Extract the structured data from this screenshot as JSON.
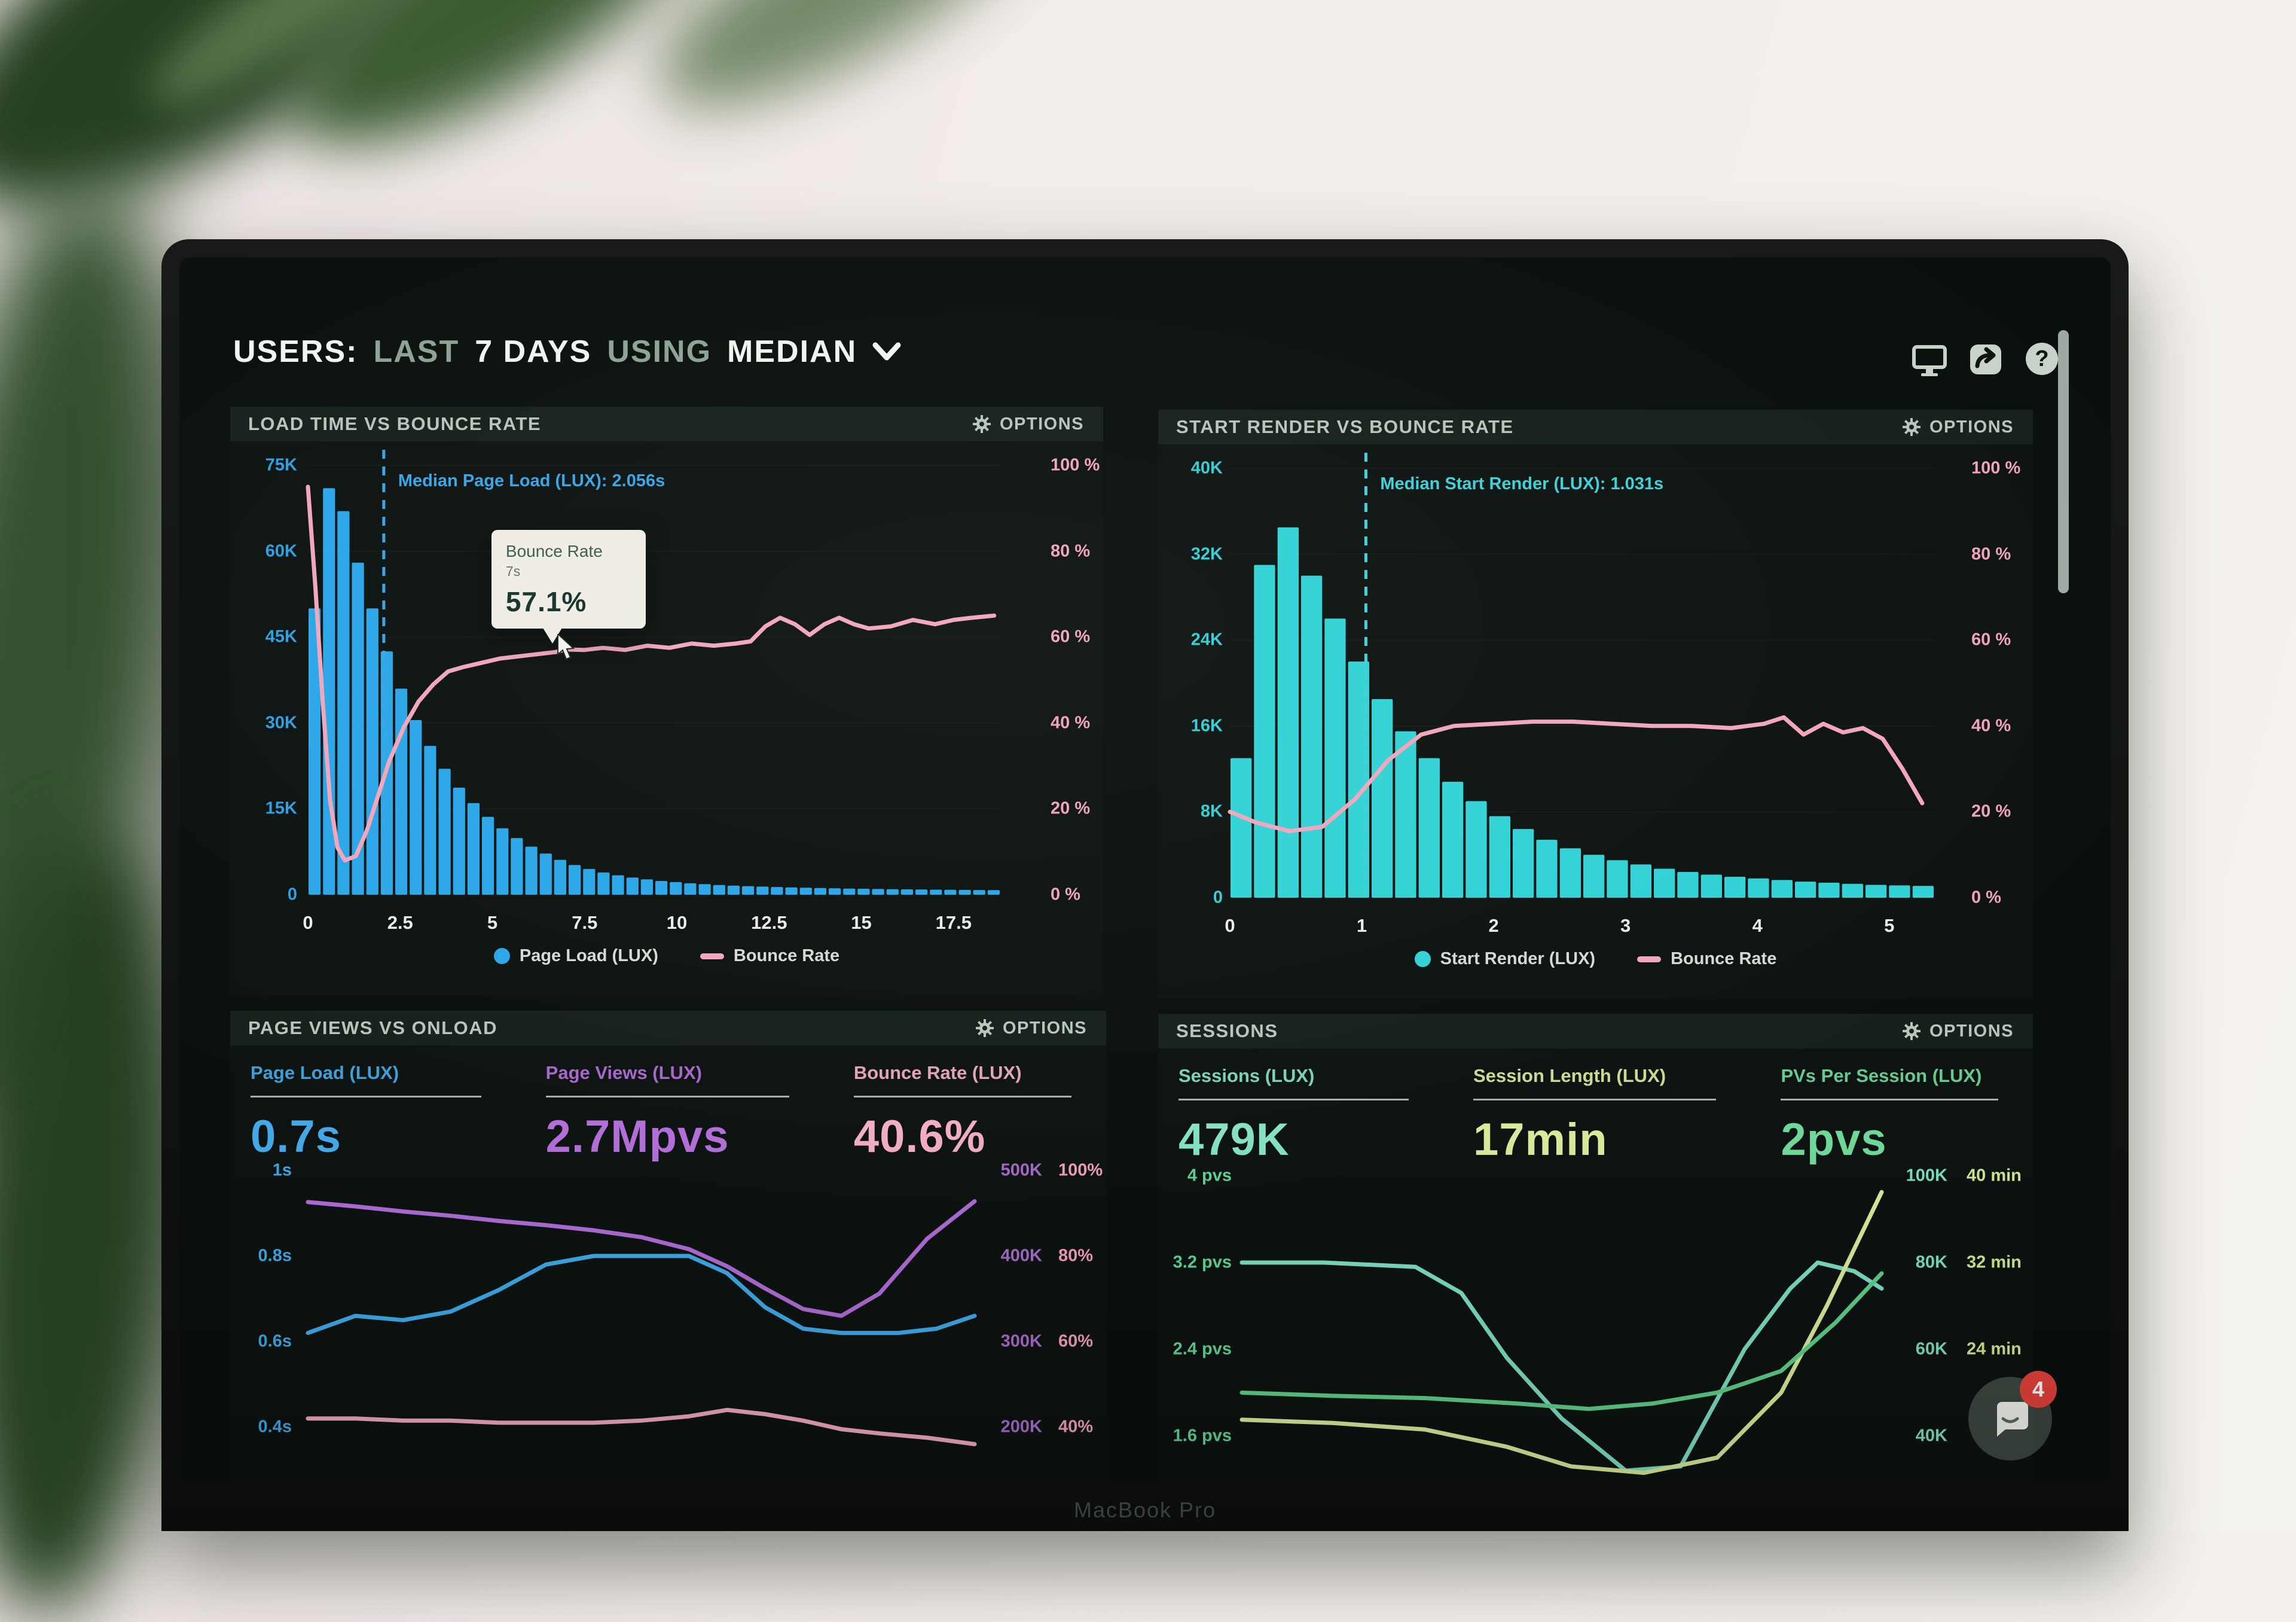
{
  "scene": {
    "laptop_brand_text": "MacBook Pro"
  },
  "header": {
    "segments": [
      {
        "text": "USERS:",
        "bright": true
      },
      {
        "text": "LAST",
        "bright": false
      },
      {
        "text": "7 DAYS",
        "bright": true
      },
      {
        "text": "USING",
        "bright": false
      },
      {
        "text": "MEDIAN",
        "bright": true
      }
    ],
    "toolbar_icons": [
      "display-icon",
      "share-icon",
      "help-icon"
    ]
  },
  "chat_widget": {
    "unread_count": "4"
  },
  "panels": [
    {
      "title": "LOAD TIME VS BOUNCE RATE",
      "options_label": "OPTIONS"
    },
    {
      "title": "START RENDER VS BOUNCE RATE",
      "options_label": "OPTIONS"
    },
    {
      "title": "PAGE VIEWS VS ONLOAD",
      "options_label": "OPTIONS",
      "metrics": [
        {
          "label": "Page Load (LUX)",
          "value": "0.7s",
          "color": "#45aae8"
        },
        {
          "label": "Page Views (LUX)",
          "value": "2.7Mpvs",
          "color": "#b36fd9"
        },
        {
          "label": "Bounce Rate (LUX)",
          "value": "40.6%",
          "color": "#f3afc4"
        }
      ]
    },
    {
      "title": "SESSIONS",
      "options_label": "OPTIONS",
      "metrics": [
        {
          "label": "Sessions (LUX)",
          "value": "479K",
          "color": "#86e2c6"
        },
        {
          "label": "Session Length (LUX)",
          "value": "17min",
          "color": "#d9ec9c"
        },
        {
          "label": "PVs Per Session (LUX)",
          "value": "2pvs",
          "color": "#6fd99a"
        }
      ]
    }
  ],
  "chart_data": [
    {
      "type": "bar+line",
      "title": "LOAD TIME VS BOUNCE RATE",
      "x_unit": "seconds",
      "x_max": 18.8,
      "x_ticks": [
        0,
        2.5,
        5,
        7.5,
        10,
        12.5,
        15,
        17.5
      ],
      "bars": {
        "name": "Page Load (LUX)",
        "color": "#2aa6e8",
        "axis_color": "#2f9fe0",
        "y_max": 75,
        "axis_ticks": [
          "75K",
          "60K",
          "45K",
          "30K",
          "15K",
          "0"
        ],
        "values": [
          50,
          71,
          67,
          58,
          50,
          42.5,
          36,
          30.5,
          26,
          22,
          18.7,
          16,
          13.6,
          11.6,
          9.9,
          8.4,
          7.2,
          6.1,
          5.2,
          4.5,
          3.9,
          3.4,
          3,
          2.7,
          2.4,
          2.2,
          2,
          1.85,
          1.7,
          1.6,
          1.5,
          1.42,
          1.35,
          1.28,
          1.22,
          1.17,
          1.12,
          1.08,
          1.04,
          1,
          0.97,
          0.94,
          0.91,
          0.89,
          0.87,
          0.85,
          0.83,
          0.8
        ]
      },
      "line": {
        "name": "Bounce Rate",
        "color": "#f2a6bb",
        "axis_color": "#f0a3b9",
        "y_max": 100,
        "axis_ticks": [
          "100 %",
          "80 %",
          "60 %",
          "40 %",
          "20 %",
          "0 %"
        ],
        "points": [
          [
            0,
            95
          ],
          [
            0.2,
            72
          ],
          [
            0.4,
            45
          ],
          [
            0.6,
            22
          ],
          [
            0.8,
            11
          ],
          [
            1,
            8
          ],
          [
            1.3,
            9
          ],
          [
            1.6,
            15
          ],
          [
            1.9,
            23
          ],
          [
            2.2,
            31
          ],
          [
            2.6,
            39
          ],
          [
            3,
            45
          ],
          [
            3.4,
            49
          ],
          [
            3.8,
            52
          ],
          [
            4.2,
            53
          ],
          [
            4.7,
            54
          ],
          [
            5.2,
            55
          ],
          [
            5.7,
            55.5
          ],
          [
            6.2,
            56
          ],
          [
            6.7,
            56.5
          ],
          [
            7,
            57.1
          ],
          [
            7.5,
            57
          ],
          [
            8,
            57.5
          ],
          [
            8.6,
            57
          ],
          [
            9.2,
            58
          ],
          [
            9.8,
            57.5
          ],
          [
            10.4,
            58.5
          ],
          [
            11,
            58
          ],
          [
            11.6,
            58.5
          ],
          [
            12,
            59
          ],
          [
            12.4,
            62.5
          ],
          [
            12.8,
            64.5
          ],
          [
            13.2,
            63
          ],
          [
            13.6,
            60.5
          ],
          [
            14,
            63
          ],
          [
            14.4,
            64.5
          ],
          [
            14.8,
            63
          ],
          [
            15.2,
            62
          ],
          [
            15.8,
            62.5
          ],
          [
            16.4,
            64
          ],
          [
            17,
            63
          ],
          [
            17.5,
            64
          ],
          [
            18,
            64.5
          ],
          [
            18.6,
            65
          ]
        ]
      },
      "median": {
        "label": "Median Page Load (LUX): 2.056s",
        "value": 2.056,
        "color": "#38a4e6"
      },
      "tooltip": {
        "title": "Bounce Rate",
        "subtitle": "7s",
        "value": "57.1%",
        "x": 7.0,
        "y": 57.1
      },
      "legend": [
        {
          "label": "Page Load (LUX)",
          "color": "#2aa6e8",
          "marker": "dot"
        },
        {
          "label": "Bounce Rate",
          "color": "#f2a6bb",
          "marker": "dash"
        }
      ]
    },
    {
      "type": "bar+line",
      "title": "START RENDER VS BOUNCE RATE",
      "x_unit": "seconds",
      "x_max": 5.35,
      "x_ticks": [
        0,
        1,
        2,
        3,
        4,
        5
      ],
      "bars": {
        "name": "Start Render (LUX)",
        "color": "#32d2d6",
        "axis_color": "#35ccd3",
        "y_max": 40,
        "axis_ticks": [
          "40K",
          "32K",
          "24K",
          "16K",
          "8K",
          "0"
        ],
        "values": [
          13,
          31,
          34.5,
          30,
          26,
          22,
          18.5,
          15.5,
          13,
          10.8,
          9,
          7.6,
          6.4,
          5.4,
          4.6,
          4,
          3.5,
          3.1,
          2.7,
          2.4,
          2.15,
          1.95,
          1.8,
          1.65,
          1.5,
          1.4,
          1.3,
          1.2,
          1.15,
          1.1
        ]
      },
      "line": {
        "name": "Bounce Rate",
        "color": "#f2a6bb",
        "axis_color": "#f0a3b9",
        "y_max": 100,
        "axis_ticks": [
          "100 %",
          "80 %",
          "60 %",
          "40 %",
          "20 %",
          "0 %"
        ],
        "points": [
          [
            0,
            20
          ],
          [
            0.2,
            17.5
          ],
          [
            0.45,
            15.5
          ],
          [
            0.7,
            16.5
          ],
          [
            0.95,
            23
          ],
          [
            1.2,
            32
          ],
          [
            1.45,
            38
          ],
          [
            1.7,
            40
          ],
          [
            2,
            40.5
          ],
          [
            2.3,
            41
          ],
          [
            2.6,
            41
          ],
          [
            2.9,
            40.5
          ],
          [
            3.2,
            40
          ],
          [
            3.5,
            40
          ],
          [
            3.8,
            39.5
          ],
          [
            4.05,
            40.5
          ],
          [
            4.2,
            42
          ],
          [
            4.35,
            38
          ],
          [
            4.5,
            40.5
          ],
          [
            4.65,
            38.5
          ],
          [
            4.8,
            39.5
          ],
          [
            4.95,
            37
          ],
          [
            5.1,
            30
          ],
          [
            5.25,
            22
          ]
        ]
      },
      "median": {
        "label": "Median Start Render (LUX): 1.031s",
        "value": 1.031,
        "color": "#3fd0d8"
      },
      "legend": [
        {
          "label": "Start Render (LUX)",
          "color": "#32d2d6",
          "marker": "dot"
        },
        {
          "label": "Bounce Rate",
          "color": "#f2a6bb",
          "marker": "dash"
        }
      ]
    },
    {
      "type": "line",
      "title": "PAGE VIEWS VS ONLOAD",
      "x_max": 7,
      "axes_left": {
        "ticks": [
          "1s",
          "0.8s",
          "0.6s",
          "0.4s"
        ],
        "max": 1.0,
        "min": 0.4,
        "color": "#3fa7e6"
      },
      "axes_right": [
        {
          "ticks": [
            "500K",
            "400K",
            "300K",
            "200K"
          ],
          "max": 500,
          "min": 200,
          "color": "#a66cc9"
        },
        {
          "ticks": [
            "100%",
            "80%",
            "60%",
            "40%"
          ],
          "max": 100,
          "min": 40,
          "color": "#ef9fb8"
        }
      ],
      "series": [
        {
          "name": "Page Views (LUX)",
          "axis": "right0",
          "color": "#b06cd6",
          "points": [
            [
              0,
              463
            ],
            [
              0.5,
              458
            ],
            [
              1,
              452
            ],
            [
              1.5,
              447
            ],
            [
              2,
              441
            ],
            [
              2.5,
              436
            ],
            [
              3,
              430
            ],
            [
              3.5,
              422
            ],
            [
              4,
              408
            ],
            [
              4.4,
              388
            ],
            [
              4.8,
              362
            ],
            [
              5.2,
              338
            ],
            [
              5.6,
              330
            ],
            [
              6,
              356
            ],
            [
              6.5,
              420
            ],
            [
              7,
              464
            ]
          ]
        },
        {
          "name": "Page Load (LUX)",
          "axis": "left",
          "color": "#3fa9e8",
          "points": [
            [
              0,
              0.62
            ],
            [
              0.5,
              0.66
            ],
            [
              1,
              0.65
            ],
            [
              1.5,
              0.67
            ],
            [
              2,
              0.72
            ],
            [
              2.5,
              0.78
            ],
            [
              3,
              0.8
            ],
            [
              3.5,
              0.8
            ],
            [
              4,
              0.8
            ],
            [
              4.4,
              0.76
            ],
            [
              4.8,
              0.68
            ],
            [
              5.2,
              0.63
            ],
            [
              5.6,
              0.62
            ],
            [
              6.2,
              0.62
            ],
            [
              6.6,
              0.63
            ],
            [
              7,
              0.66
            ]
          ]
        },
        {
          "name": "Bounce Rate (LUX)",
          "axis": "right1",
          "color": "#f0a7bc",
          "points": [
            [
              0,
              42
            ],
            [
              0.5,
              42
            ],
            [
              1,
              41.5
            ],
            [
              1.5,
              41.5
            ],
            [
              2,
              41
            ],
            [
              2.5,
              41
            ],
            [
              3,
              41
            ],
            [
              3.5,
              41.5
            ],
            [
              4,
              42.5
            ],
            [
              4.4,
              44
            ],
            [
              4.8,
              43
            ],
            [
              5.2,
              41.5
            ],
            [
              5.6,
              39.5
            ],
            [
              6,
              38.5
            ],
            [
              6.5,
              37.5
            ],
            [
              7,
              36
            ]
          ]
        }
      ]
    },
    {
      "type": "line",
      "title": "SESSIONS",
      "x_max": 7,
      "axes_left": {
        "ticks": [
          "4 pvs",
          "3.2 pvs",
          "2.4 pvs",
          "1.6 pvs"
        ],
        "max": 4,
        "min": 1.6,
        "color": "#5dd598"
      },
      "axes_right": [
        {
          "ticks": [
            "100K",
            "80K",
            "60K",
            "40K"
          ],
          "max": 100,
          "min": 40,
          "color": "#7adec2"
        },
        {
          "ticks": [
            "40 min",
            "32 min",
            "24 min",
            ""
          ],
          "max": 40,
          "min": 16,
          "color": "#cfe98f"
        }
      ],
      "series": [
        {
          "name": "Sessions (LUX)",
          "axis": "right0",
          "color": "#7ddec4",
          "points": [
            [
              0,
              80
            ],
            [
              0.9,
              80
            ],
            [
              1.9,
              79
            ],
            [
              2.4,
              73
            ],
            [
              2.9,
              58
            ],
            [
              3.5,
              44
            ],
            [
              4.2,
              32
            ],
            [
              4.8,
              33
            ],
            [
              5.5,
              60
            ],
            [
              6,
              74
            ],
            [
              6.3,
              80
            ],
            [
              6.7,
              78
            ],
            [
              7,
              74
            ]
          ]
        },
        {
          "name": "Session Length (LUX)",
          "axis": "right1",
          "color": "#d9ec9c",
          "points": [
            [
              0,
              17.5
            ],
            [
              1,
              17.2
            ],
            [
              2,
              16.6
            ],
            [
              2.9,
              15
            ],
            [
              3.6,
              13.2
            ],
            [
              4.4,
              12.6
            ],
            [
              5.2,
              14
            ],
            [
              5.9,
              20
            ],
            [
              6.4,
              28
            ],
            [
              6.8,
              35
            ],
            [
              7,
              38.5
            ]
          ]
        },
        {
          "name": "PVs Per Session (LUX)",
          "axis": "left",
          "color": "#5fcf8a",
          "points": [
            [
              0,
              2
            ],
            [
              1,
              1.97
            ],
            [
              2,
              1.95
            ],
            [
              3,
              1.9
            ],
            [
              3.8,
              1.85
            ],
            [
              4.5,
              1.9
            ],
            [
              5.2,
              2
            ],
            [
              5.9,
              2.2
            ],
            [
              6.5,
              2.65
            ],
            [
              7,
              3.1
            ]
          ]
        }
      ]
    }
  ]
}
